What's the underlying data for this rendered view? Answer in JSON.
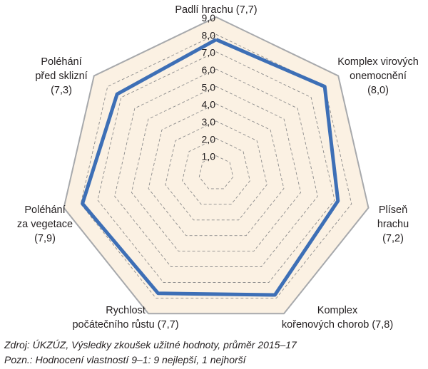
{
  "chart_data": {
    "type": "radar",
    "scale": {
      "min": 0,
      "max": 9,
      "ticks": [
        "1,0",
        "2,0",
        "3,0",
        "4,0",
        "5,0",
        "6,0",
        "7,0",
        "8,0",
        "9,0"
      ]
    },
    "axes": [
      {
        "lines": [
          "Padlí hrachu (7,7)"
        ],
        "value": 7.7
      },
      {
        "lines": [
          "Komplex virových",
          "onemocnění",
          "(8,0)"
        ],
        "value": 8.0
      },
      {
        "lines": [
          "Plíseň",
          "hrachu",
          "(7,2)"
        ],
        "value": 7.2
      },
      {
        "lines": [
          "Komplex",
          "kořenových chorob (7,8)"
        ],
        "value": 7.8
      },
      {
        "lines": [
          "Rychlost",
          "počátečního růstu (7,7)"
        ],
        "value": 7.7
      },
      {
        "lines": [
          "Poléhání",
          "za vegetace",
          "(7,9)"
        ],
        "value": 7.9
      },
      {
        "lines": [
          "Poléhání",
          "před sklizní",
          "(7,3)"
        ],
        "value": 7.3
      }
    ],
    "colors": {
      "background": "#fbf1e3",
      "outline": "#a7a9ac",
      "grid": "#8c8c8c",
      "series": "#3d6fb6"
    }
  },
  "footer": {
    "source": "Zdroj: ÚKZÚZ, Výsledky zkoušek užitné hodnoty, průměr 2015–17",
    "note": "Pozn.: Hodnocení vlastností 9–1: 9 nejlepší, 1 nejhorší"
  }
}
